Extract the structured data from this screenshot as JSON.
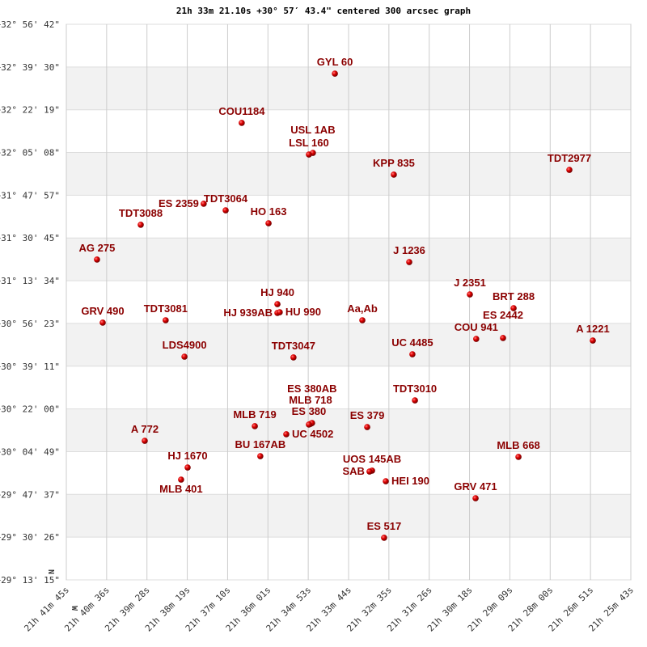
{
  "chart_data": {
    "type": "scatter",
    "title": "21h 33m 21.10s +30° 57′ 43.4\" centered 300 arcsec graph",
    "xlabel": "",
    "ylabel": "",
    "x_unit": "RA (hours)",
    "y_unit": "Dec (degrees)",
    "xlim": [
      21.69583,
      21.42861
    ],
    "ylim": [
      29.22083,
      32.945
    ],
    "x_reversed": true,
    "grid": true,
    "alternating_bands": true,
    "marker_color": "#cc0000",
    "label_color": "#8b0000",
    "band_color": "#f2f2f2",
    "x_ticks": [
      "21h 41m 45s",
      "21h 40m 36s",
      "21h 39m 28s",
      "21h 38m 19s",
      "21h 37m 10s",
      "21h 36m 01s",
      "21h 34m 53s",
      "21h 33m 44s",
      "21h 32m 35s",
      "21h 31m 26s",
      "21h 30m 18s",
      "21h 29m 09s",
      "21h 28m 00s",
      "21h 26m 51s",
      "21h 25m 43s"
    ],
    "y_ticks": [
      "+32° 56' 42\"",
      "+32° 39' 30\"",
      "+32° 22' 19\"",
      "+32° 05' 08\"",
      "+31° 47' 57\"",
      "+31° 30' 45\"",
      "+31° 13' 34\"",
      "+30° 56' 23\"",
      "+30° 39' 11\"",
      "+30° 22' 00\"",
      "+30° 04' 49\"",
      "+29° 47' 37\"",
      "+29° 30' 26\"",
      "+29° 13' 15\""
    ],
    "compass": {
      "north": "N",
      "west": "W"
    },
    "points": [
      {
        "name": "GYL  60",
        "ra": 21.5687,
        "dec": 32.614
      },
      {
        "name": "COU1184",
        "ra": 21.6128,
        "dec": 32.284
      },
      {
        "name": "USL  1AB",
        "ra": 21.5791,
        "dec": 32.083
      },
      {
        "name": "LSL  160",
        "ra": 21.581,
        "dec": 32.072
      },
      {
        "name": "KPP 835",
        "ra": 21.5408,
        "dec": 31.937
      },
      {
        "name": "TDT2977",
        "ra": 21.4577,
        "dec": 31.969
      },
      {
        "name": "ES 2359",
        "ra": 21.6308,
        "dec": 31.742
      },
      {
        "name": "TDT3064",
        "ra": 21.6204,
        "dec": 31.698
      },
      {
        "name": "HO  163",
        "ra": 21.6001,
        "dec": 31.611
      },
      {
        "name": "TDT3088",
        "ra": 21.6606,
        "dec": 31.601
      },
      {
        "name": "AG  275",
        "ra": 21.6813,
        "dec": 31.368
      },
      {
        "name": "J  1236",
        "ra": 21.5335,
        "dec": 31.351
      },
      {
        "name": "J  2351",
        "ra": 21.5048,
        "dec": 31.134
      },
      {
        "name": "BRT 288",
        "ra": 21.4841,
        "dec": 31.042
      },
      {
        "name": "HJ  940",
        "ra": 21.5959,
        "dec": 31.069
      },
      {
        "name": "HJ  939AB",
        "ra": 21.5959,
        "dec": 31.01
      },
      {
        "name": "HU  990",
        "ra": 21.5948,
        "dec": 31.015
      },
      {
        "name": "GRV 490",
        "ra": 21.6786,
        "dec": 30.945
      },
      {
        "name": "TDT3081",
        "ra": 21.6488,
        "dec": 30.961
      },
      {
        "name": "Aa,Ab",
        "ra": 21.5557,
        "dec": 30.961
      },
      {
        "name": "COU 941",
        "ra": 21.5018,
        "dec": 30.836
      },
      {
        "name": "ES 2442",
        "ra": 21.4891,
        "dec": 30.842
      },
      {
        "name": "A  1221",
        "ra": 21.4466,
        "dec": 30.825
      },
      {
        "name": "LDS4900",
        "ra": 21.6399,
        "dec": 30.717
      },
      {
        "name": "TDT3047",
        "ra": 21.5883,
        "dec": 30.712
      },
      {
        "name": "UC 4485",
        "ra": 21.532,
        "dec": 30.733
      },
      {
        "name": "TDT3010",
        "ra": 21.5308,
        "dec": 30.424
      },
      {
        "name": "MLB 718",
        "ra": 21.5802,
        "dec": 30.267
      },
      {
        "name": "ES  380AB",
        "ra": 21.5795,
        "dec": 30.272
      },
      {
        "name": "ES  380",
        "ra": 21.581,
        "dec": 30.262
      },
      {
        "name": "MLB 719",
        "ra": 21.6066,
        "dec": 30.251
      },
      {
        "name": "UC 4502",
        "ra": 21.5917,
        "dec": 30.197
      },
      {
        "name": "BU  167AB",
        "ra": 21.604,
        "dec": 30.05
      },
      {
        "name": "ES  379",
        "ra": 21.5534,
        "dec": 30.245
      },
      {
        "name": "A   772",
        "ra": 21.6587,
        "dec": 30.153
      },
      {
        "name": "MLB 668",
        "ra": 21.4818,
        "dec": 30.045
      },
      {
        "name": "HJ 1670",
        "ra": 21.6384,
        "dec": 29.974
      },
      {
        "name": "MLB 401",
        "ra": 21.6415,
        "dec": 29.893
      },
      {
        "name": "UOS 145AB",
        "ra": 21.5511,
        "dec": 29.953
      },
      {
        "name": "SAB",
        "ra": 21.5523,
        "dec": 29.947
      },
      {
        "name": "HEI 190",
        "ra": 21.5446,
        "dec": 29.882
      },
      {
        "name": "GRV 471",
        "ra": 21.5021,
        "dec": 29.768
      },
      {
        "name": "ES  517",
        "ra": 21.5454,
        "dec": 29.503
      }
    ]
  }
}
